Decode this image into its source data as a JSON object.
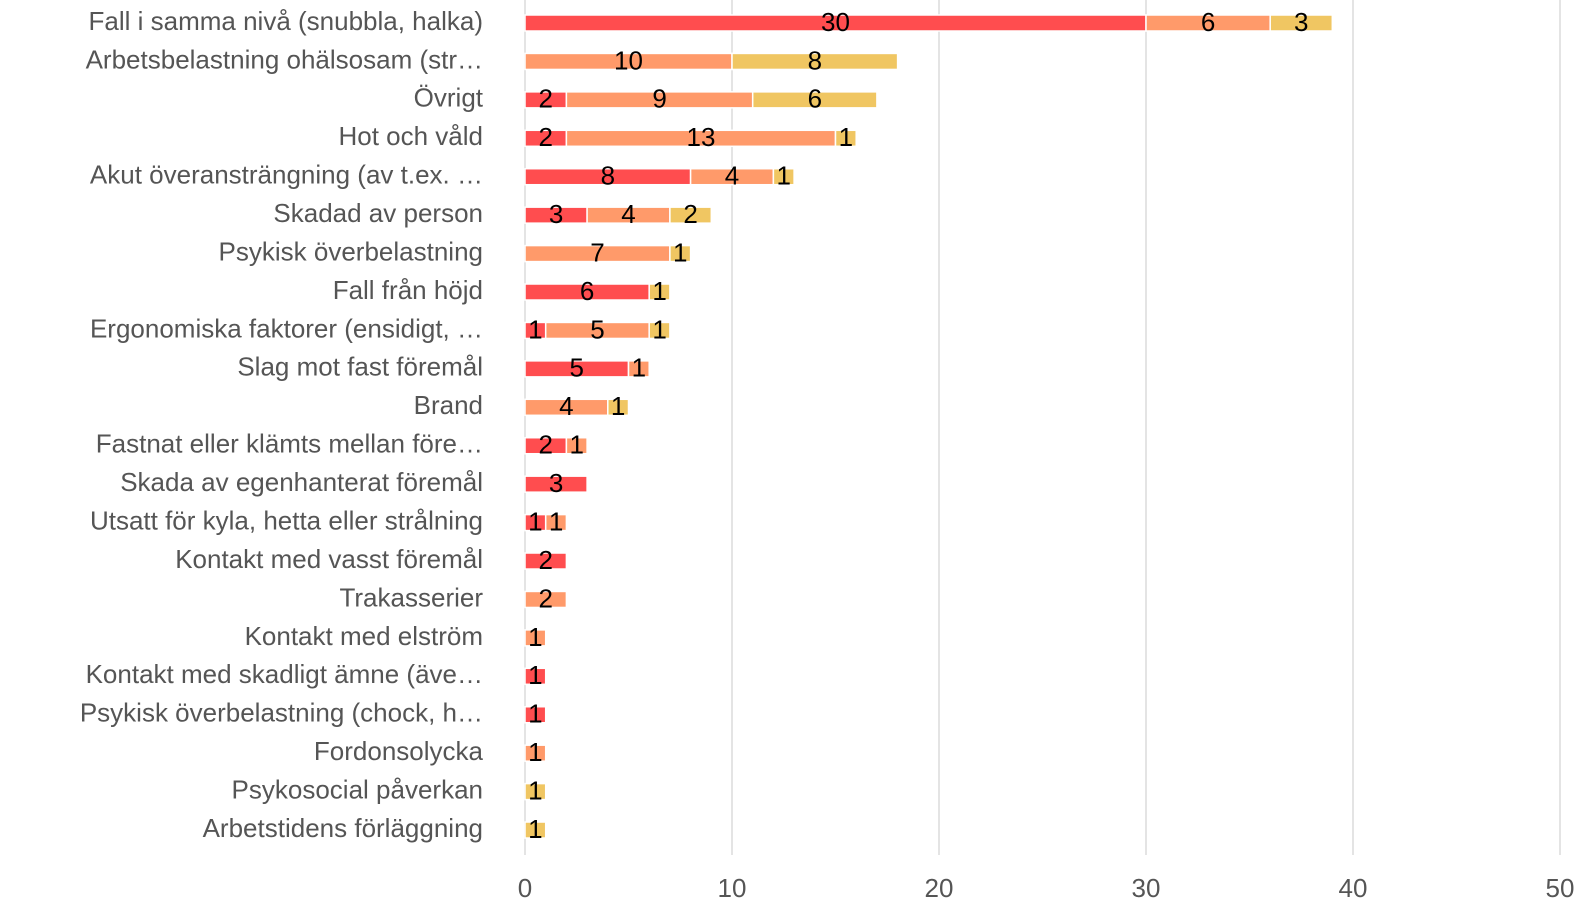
{
  "chart_data": {
    "type": "stacked_barh",
    "categories": [
      "Fall i samma nivå (snubbla, halka)",
      "Arbetsbelastning ohälsosam (str…",
      "Övrigt",
      "Hot och våld",
      "Akut överansträngning (av t.ex. …",
      "Skadad av person",
      "Psykisk överbelastning",
      "Fall från höjd",
      "Ergonomiska faktorer (ensidigt, …",
      "Slag mot fast föremål",
      "Brand",
      "Fastnat eller klämts mellan före…",
      "Skada av egenhanterat föremål",
      "Utsatt för kyla, hetta eller strålning",
      "Kontakt med vasst föremål",
      "Trakasserier",
      "Kontakt med elström",
      "Kontakt med skadligt ämne (äve…",
      "Psykisk överbelastning (chock, h…",
      "Fordonsolycka",
      "Psykosocial påverkan",
      "Arbetstidens förläggning"
    ],
    "series": [
      {
        "color": "#ff4d4f",
        "values": [
          30,
          null,
          2,
          2,
          8,
          3,
          null,
          6,
          1,
          5,
          null,
          2,
          3,
          1,
          2,
          null,
          null,
          1,
          1,
          null,
          null,
          null
        ]
      },
      {
        "color": "#ff9a6a",
        "values": [
          6,
          10,
          9,
          13,
          4,
          4,
          7,
          null,
          5,
          1,
          4,
          1,
          null,
          1,
          null,
          2,
          1,
          null,
          null,
          1,
          null,
          null
        ]
      },
      {
        "color": "#f0c662",
        "values": [
          3,
          8,
          6,
          1,
          1,
          2,
          1,
          1,
          1,
          null,
          1,
          null,
          null,
          null,
          null,
          null,
          null,
          null,
          null,
          null,
          1,
          1
        ]
      }
    ],
    "xlim": [
      0,
      50
    ],
    "xticks": [
      0,
      10,
      20,
      30,
      40,
      50
    ],
    "grid": true
  }
}
